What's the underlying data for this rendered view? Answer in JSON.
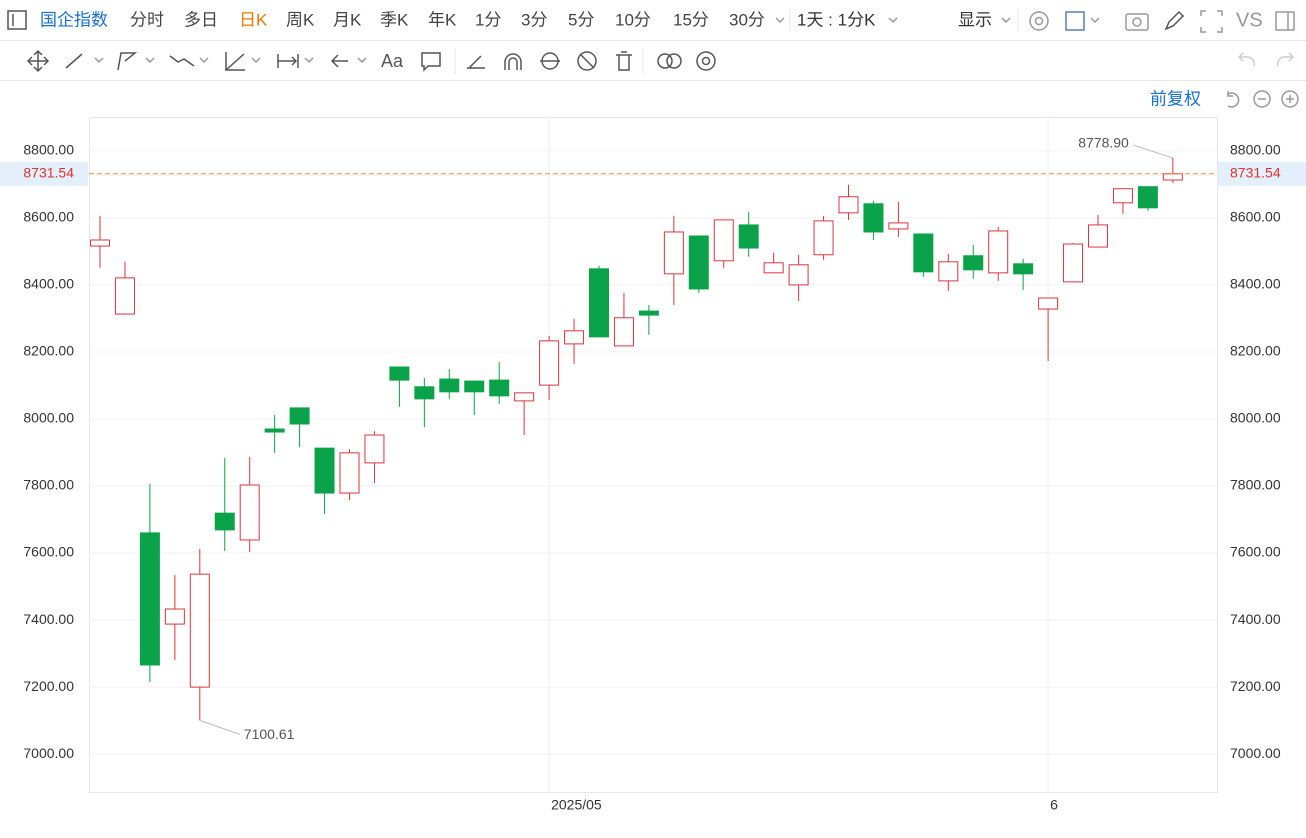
{
  "toolbar": {
    "symbol": "国企指数",
    "tabs": [
      "分时",
      "多日",
      "日K",
      "周K",
      "月K",
      "季K",
      "年K",
      "1分",
      "3分",
      "5分",
      "10分",
      "15分",
      "30分"
    ],
    "active_tab": "日K",
    "interval": "1天 : 1分K",
    "display": "显示",
    "compare": "VS",
    "text_tool": "Aa",
    "adjust": "前复权"
  },
  "chart_data": {
    "type": "candlestick",
    "categories": [
      null,
      null,
      null,
      null,
      null,
      null,
      null,
      null,
      null,
      null,
      null,
      null,
      null,
      null,
      null,
      null,
      null,
      null,
      "2025/05",
      null,
      null,
      null,
      null,
      null,
      null,
      null,
      null,
      null,
      null,
      null,
      null,
      null,
      null,
      null,
      null,
      null,
      null,
      null,
      "6",
      null,
      null,
      null,
      null,
      null
    ],
    "open": [
      8516,
      8313,
      7660,
      7388,
      7200,
      7719,
      7639,
      7970,
      8033,
      7913,
      7779,
      7869,
      8155,
      8096,
      8119,
      8113,
      8116,
      8054,
      8101,
      8224,
      8448,
      8218,
      8322,
      8433,
      8546,
      8472,
      8579,
      8436,
      8400,
      8490,
      8615,
      8642,
      8567,
      8552,
      8412,
      8487,
      8436,
      8463,
      8328,
      8409,
      8513,
      8645,
      8693,
      8713
    ],
    "high": [
      8606,
      8469,
      7806,
      7534,
      7612,
      7884,
      7887,
      8012,
      8033,
      7913,
      7910,
      7964,
      8155,
      8122,
      8149,
      8113,
      8170,
      8078,
      8248,
      8299,
      8457,
      8376,
      8340,
      8606,
      8546,
      8594,
      8618,
      8496,
      8490,
      8606,
      8699,
      8651,
      8648,
      8552,
      8493,
      8519,
      8573,
      8478,
      8361,
      8525,
      8609,
      8687,
      8693,
      8778.9
    ],
    "low": [
      8451,
      8313,
      7215,
      7281,
      7100.61,
      7606,
      7603,
      7899,
      7916,
      7716,
      7758,
      7809,
      8036,
      7976,
      8060,
      8012,
      8045,
      7952,
      8057,
      8164,
      8245,
      8218,
      8251,
      8340,
      8376,
      8451,
      8484,
      8436,
      8352,
      8475,
      8594,
      8534,
      8543,
      8424,
      8382,
      8418,
      8412,
      8385,
      8173,
      8409,
      8513,
      8612,
      8621,
      8704
    ],
    "close": [
      8534,
      8421,
      7266,
      7433,
      7537,
      7669,
      7803,
      7961,
      7985,
      7779,
      7899,
      7952,
      8116,
      8060,
      8081,
      8081,
      8069,
      8078,
      8233,
      8263,
      8245,
      8302,
      8310,
      8558,
      8388,
      8594,
      8510,
      8466,
      8460,
      8591,
      8663,
      8558,
      8585,
      8439,
      8469,
      8445,
      8561,
      8433,
      8361,
      8522,
      8579,
      8687,
      8630,
      8731.54
    ],
    "up_color": "#d9363e",
    "down_color": "#0aa34a",
    "ylim": [
      6887,
      8901
    ],
    "yticks": [
      {
        "value": 7000,
        "label": "7000.00"
      },
      {
        "value": 7200,
        "label": "7200.00"
      },
      {
        "value": 7400,
        "label": "7400.00"
      },
      {
        "value": 7600,
        "label": "7600.00"
      },
      {
        "value": 7800,
        "label": "7800.00"
      },
      {
        "value": 8000,
        "label": "8000.00"
      },
      {
        "value": 8200,
        "label": "8200.00"
      },
      {
        "value": 8400,
        "label": "8400.00"
      },
      {
        "value": 8600,
        "label": "8600.00"
      },
      {
        "value": 8800,
        "label": "8800.00"
      }
    ],
    "grid": true,
    "last_price": 8731.54,
    "last_price_color": "#f08a30",
    "high_label": {
      "value": 8778.9,
      "label": "8778.90"
    },
    "low_label": {
      "value": 7100.61,
      "label": "7100.61"
    }
  }
}
